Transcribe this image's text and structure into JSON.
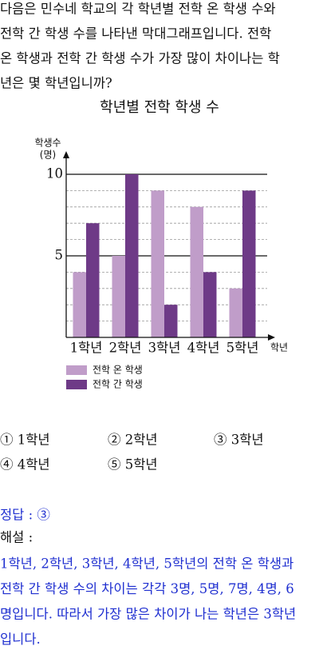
{
  "question": {
    "lines": [
      "다음은 민수네 학교의 각 학년별 전학 온 학생 수와",
      "전학 간 학생 수를 나타낸 막대그래프입니다. 전학",
      "온 학생과 전학 간 학생 수가 가장 많이 차이나는 학",
      "년은 몇 학년입니까?"
    ]
  },
  "chart_data": {
    "type": "bar",
    "title": "학년별 전학 학생 수",
    "y_label": "학생수",
    "y_unit": "(명)",
    "x_label": "학년",
    "categories": [
      "1학년",
      "2학년",
      "3학년",
      "4학년",
      "5학년"
    ],
    "series": [
      {
        "name": "전학 온 학생",
        "color": "#c09dc9",
        "values": [
          4,
          5,
          9,
          8,
          3
        ]
      },
      {
        "name": "전학 간 학생",
        "color": "#6e3a87",
        "values": [
          7,
          10,
          2,
          4,
          9
        ]
      }
    ],
    "ylim": [
      0,
      11
    ],
    "yticks": [
      5,
      10
    ],
    "minor_yticks": [
      1,
      2,
      3,
      4,
      6,
      7,
      8,
      9
    ],
    "grid": true
  },
  "choices": [
    "① 1학년",
    "② 2학년",
    "③ 3학년",
    "④ 4학년",
    "⑤ 5학년"
  ],
  "answer": "정답 : ③",
  "explanation": {
    "heading": "해설 :",
    "lines": [
      "1학년, 2학년, 3학년, 4학년, 5학년의 전학 온 학생과",
      "전학 간 학생 수의 차이는 각각 3명, 5명, 7명, 4명, 6",
      "명입니다. 따라서 가장 많은 차이가 나는 학년은 3학년",
      "입니다."
    ]
  }
}
